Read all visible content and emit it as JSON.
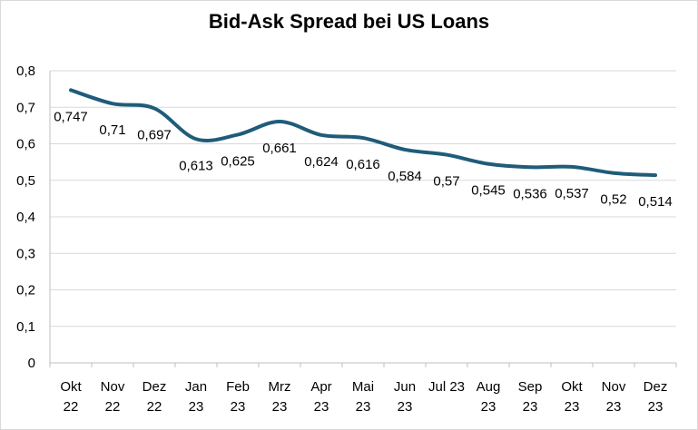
{
  "chart_data": {
    "type": "line",
    "title": "Bid-Ask Spread bei US Loans",
    "xlabel": "",
    "ylabel": "",
    "categories": [
      [
        "Okt",
        "22"
      ],
      [
        "Nov",
        "22"
      ],
      [
        "Dez",
        "22"
      ],
      [
        "Jan",
        "23"
      ],
      [
        "Feb",
        "23"
      ],
      [
        "Mrz",
        "23"
      ],
      [
        "Apr",
        "23"
      ],
      [
        "Mai",
        "23"
      ],
      [
        "Jun",
        "23"
      ],
      [
        "Jul 23"
      ],
      [
        "Aug",
        "23"
      ],
      [
        "Sep",
        "23"
      ],
      [
        "Okt",
        "23"
      ],
      [
        "Nov",
        "23"
      ],
      [
        "Dez",
        "23"
      ]
    ],
    "values": [
      0.747,
      0.71,
      0.697,
      0.613,
      0.625,
      0.661,
      0.624,
      0.616,
      0.584,
      0.57,
      0.545,
      0.536,
      0.537,
      0.52,
      0.514
    ],
    "data_labels": [
      "0,747",
      "0,71",
      "0,697",
      "0,613",
      "0,625",
      "0,661",
      "0,624",
      "0,616",
      "0,584",
      "0,57",
      "0,545",
      "0,536",
      "0,537",
      "0,52",
      "0,514"
    ],
    "ylim": [
      0,
      0.8
    ],
    "yticks": [
      0,
      0.1,
      0.2,
      0.3,
      0.4,
      0.5,
      0.6,
      0.7,
      0.8
    ],
    "ytick_labels": [
      "0",
      "0,1",
      "0,2",
      "0,3",
      "0,4",
      "0,5",
      "0,6",
      "0,7",
      "0,8"
    ],
    "grid": true,
    "legend": "none",
    "smooth": true,
    "colors": {
      "line": "#1f5c7a",
      "grid": "#d9d9d9",
      "axis": "#bfbfbf",
      "text": "#000000"
    }
  }
}
